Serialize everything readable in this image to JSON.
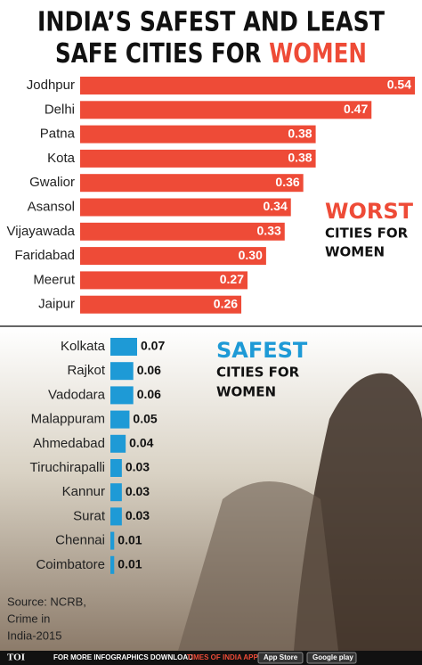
{
  "title": [
    "INDIA’S SAFEST AND LEAST",
    "SAFE CITIES FOR",
    "WOMEN"
  ],
  "chart_data": [
    {
      "type": "bar",
      "orientation": "horizontal",
      "color": "#ee4b37",
      "value_label_color": "#ffffff",
      "label": [
        "WORST",
        "CITIES FOR",
        "WOMEN"
      ],
      "categories": [
        "Jodhpur",
        "Delhi",
        "Patna",
        "Kota",
        "Gwalior",
        "Asansol",
        "Vijayawada",
        "Faridabad",
        "Meerut",
        "Jaipur"
      ],
      "values": [
        0.54,
        0.47,
        0.38,
        0.38,
        0.36,
        0.34,
        0.33,
        0.3,
        0.27,
        0.26
      ],
      "value_labels": [
        "0.54",
        "0.47",
        "0.38",
        "0.38",
        "0.36",
        "0.34",
        "0.33",
        "0.30",
        "0.27",
        "0.26"
      ]
    },
    {
      "type": "bar",
      "orientation": "horizontal",
      "color": "#1e9ad6",
      "value_label_color": "#111111",
      "label": [
        "SAFEST",
        "CITIES FOR",
        "WOMEN"
      ],
      "categories": [
        "Kolkata",
        "Rajkot",
        "Vadodara",
        "Malappuram",
        "Ahmedabad",
        "Tiruchirapalli",
        "Kannur",
        "Surat",
        "Chennai",
        "Coimbatore"
      ],
      "values": [
        0.07,
        0.06,
        0.06,
        0.05,
        0.04,
        0.03,
        0.03,
        0.03,
        0.01,
        0.01
      ],
      "value_labels": [
        "0.07",
        "0.06",
        "0.06",
        "0.05",
        "0.04",
        "0.03",
        "0.03",
        "0.03",
        "0.01",
        "0.01"
      ]
    }
  ],
  "source": [
    "Source: NCRB,",
    "Crime in",
    "India-2015"
  ],
  "footer": {
    "logo": "TOI",
    "text": "FOR MORE INFOGRAPHICS DOWNLOAD",
    "app": "TIMES OF INDIA APP",
    "store1": "App Store",
    "store2": "Google play"
  }
}
